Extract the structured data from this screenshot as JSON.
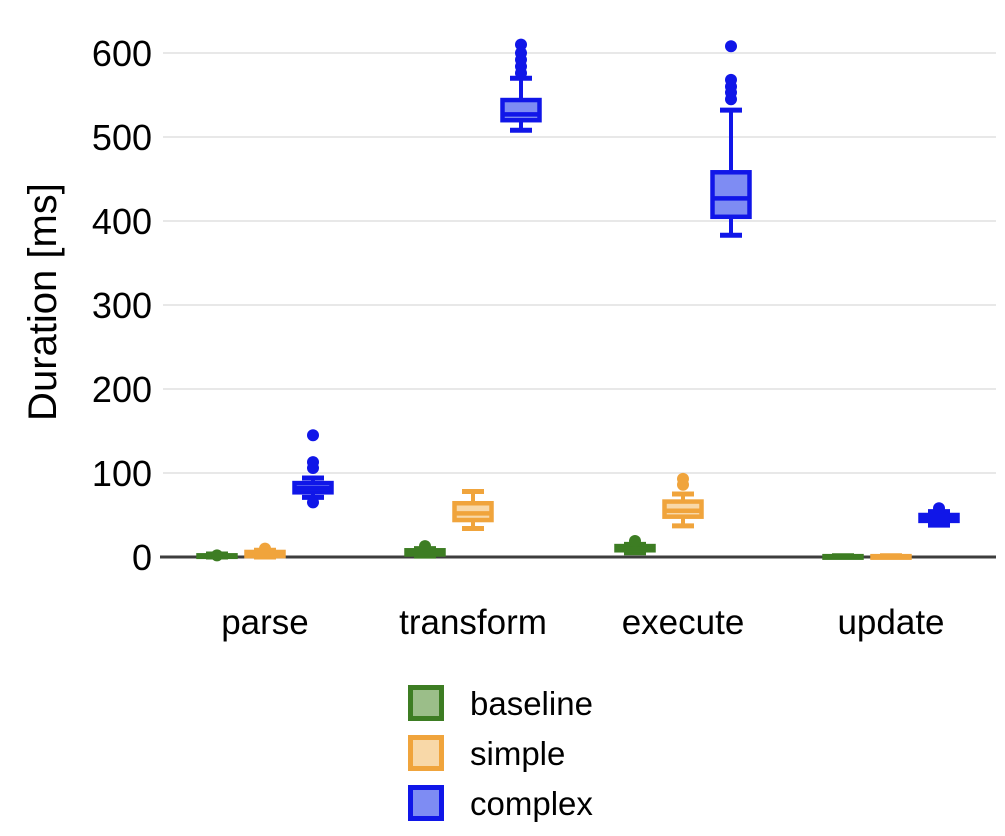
{
  "chart_data": {
    "type": "boxplot",
    "title": "",
    "ylabel": "Duration [ms]",
    "xlabel": "",
    "ylim": [
      0,
      640
    ],
    "yticks": [
      0,
      100,
      200,
      300,
      400,
      500,
      600
    ],
    "grid": true,
    "legend_position": "bottom",
    "categories": [
      "parse",
      "transform",
      "execute",
      "update"
    ],
    "style": {
      "grid_color": "#e8e8e8",
      "axis_color": "#3d3d3d",
      "text_color": "#000000"
    },
    "series": [
      {
        "name": "baseline",
        "stroke": "#3d7d23",
        "fill": "#9bbe89",
        "boxes": [
          {
            "category": "parse",
            "min": 0,
            "q1": 0.5,
            "median": 1,
            "q3": 2,
            "max": 3.5,
            "outliers": [
              2
            ]
          },
          {
            "category": "transform",
            "min": 1,
            "q1": 3,
            "median": 5,
            "q3": 8,
            "max": 10,
            "outliers": [
              13
            ]
          },
          {
            "category": "execute",
            "min": 5,
            "q1": 8,
            "median": 10,
            "q3": 13,
            "max": 15,
            "outliers": [
              19
            ]
          },
          {
            "category": "update",
            "min": 0,
            "q1": 0,
            "median": 0.5,
            "q3": 1,
            "max": 1.5,
            "outliers": []
          }
        ]
      },
      {
        "name": "simple",
        "stroke": "#f0a43c",
        "fill": "#f8d8a8",
        "boxes": [
          {
            "category": "parse",
            "min": 0,
            "q1": 1,
            "median": 3,
            "q3": 6,
            "max": 8,
            "outliers": [
              10
            ]
          },
          {
            "category": "transform",
            "min": 34,
            "q1": 44,
            "median": 52,
            "q3": 64,
            "max": 78,
            "outliers": []
          },
          {
            "category": "execute",
            "min": 37,
            "q1": 48,
            "median": 55,
            "q3": 66,
            "max": 75,
            "outliers": [
              86,
              93
            ]
          },
          {
            "category": "update",
            "min": 0,
            "q1": 0,
            "median": 0.5,
            "q3": 1,
            "max": 1.5,
            "outliers": []
          }
        ]
      },
      {
        "name": "complex",
        "stroke": "#1016e8",
        "fill": "#7e8cf3",
        "boxes": [
          {
            "category": "parse",
            "min": 71,
            "q1": 77,
            "median": 82,
            "q3": 88,
            "max": 94,
            "outliers": [
              65,
              106,
              113,
              145
            ]
          },
          {
            "category": "transform",
            "min": 508,
            "q1": 520,
            "median": 527,
            "q3": 544,
            "max": 570,
            "outliers": [
              576,
              584,
              592,
              600,
              610
            ]
          },
          {
            "category": "execute",
            "min": 383,
            "q1": 405,
            "median": 427,
            "q3": 458,
            "max": 532,
            "outliers": [
              545,
              553,
              560,
              568,
              608
            ]
          },
          {
            "category": "update",
            "min": 38,
            "q1": 43,
            "median": 47,
            "q3": 50,
            "max": 54,
            "outliers": [
              58
            ]
          }
        ]
      }
    ]
  }
}
